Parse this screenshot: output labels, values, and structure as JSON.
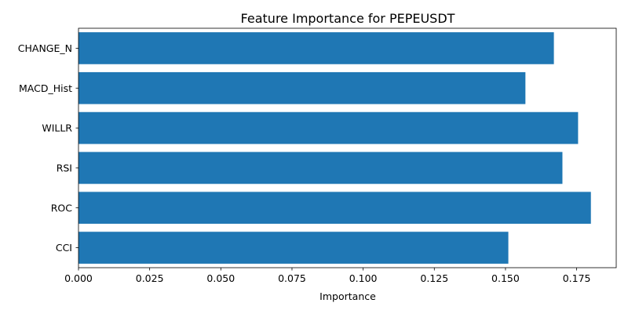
{
  "chart_data": {
    "type": "bar",
    "orientation": "horizontal",
    "title": "Feature Importance for PEPEUSDT",
    "xlabel": "Importance",
    "ylabel": "",
    "categories": [
      "CHANGE_N",
      "MACD_Hist",
      "WILLR",
      "RSI",
      "ROC",
      "CCI"
    ],
    "values": [
      0.167,
      0.157,
      0.1755,
      0.17,
      0.18,
      0.151
    ],
    "xlim": [
      0,
      0.1889
    ],
    "xticks": [
      0.0,
      0.025,
      0.05,
      0.075,
      0.1,
      0.125,
      0.15,
      0.175
    ],
    "xtick_labels": [
      "0.000",
      "0.025",
      "0.050",
      "0.075",
      "0.100",
      "0.125",
      "0.150",
      "0.175"
    ],
    "grid": false,
    "bar_color": "#1f77b4"
  }
}
